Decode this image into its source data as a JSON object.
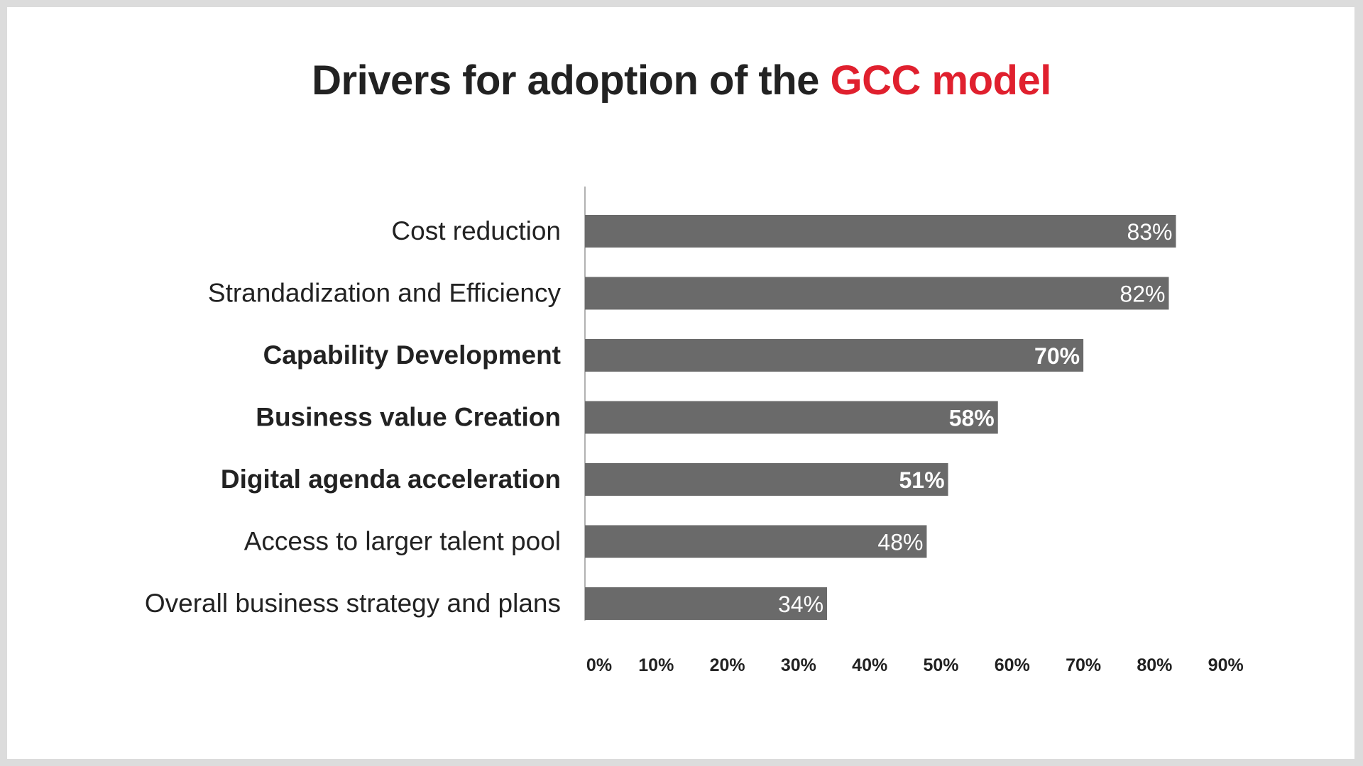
{
  "chart_data": {
    "type": "bar",
    "orientation": "horizontal",
    "title": {
      "text": "Drivers for adoption of the ",
      "highlight": "GCC model"
    },
    "title_color": "#222222",
    "highlight_color": "#e0202e",
    "bar_color": "#6a6a6a",
    "categories": [
      "Cost reduction",
      "Strandadization and Efficiency",
      "Capability Development",
      "Business value Creation",
      "Digital agenda acceleration",
      "Access to larger talent pool",
      "Overall business strategy and plans"
    ],
    "emphasized": [
      false,
      false,
      true,
      true,
      true,
      false,
      false
    ],
    "values": [
      83,
      82,
      70,
      58,
      51,
      48,
      34
    ],
    "data_labels": [
      "83%",
      "82%",
      "70%",
      "58%",
      "51%",
      "48%",
      "34%"
    ],
    "xlim": [
      0,
      90
    ],
    "x_ticks": [
      "0%",
      "10%",
      "20%",
      "30%",
      "40%",
      "50%",
      "60%",
      "70%",
      "80%",
      "90%"
    ],
    "xlabel": "",
    "ylabel": "",
    "grid": false,
    "legend": "none"
  }
}
